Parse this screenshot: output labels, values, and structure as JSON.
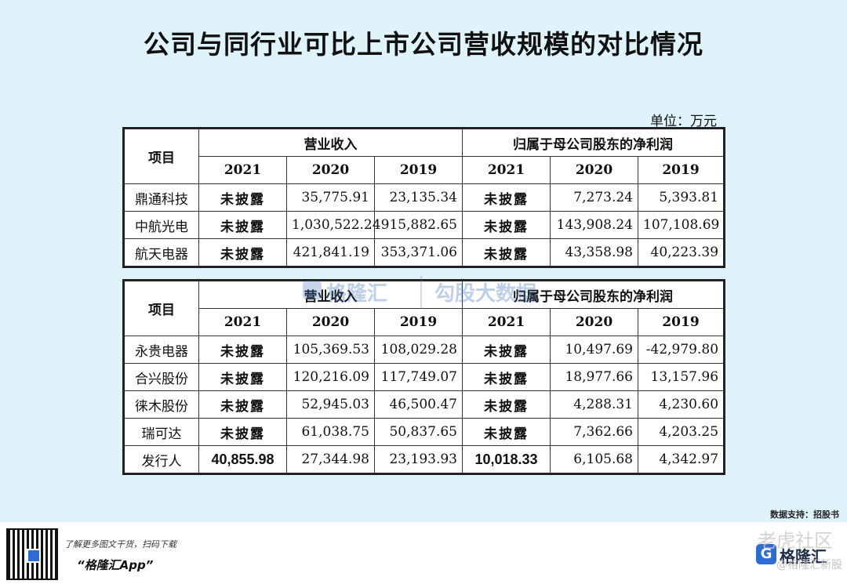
{
  "title": "公司与同行业可比上市公司营收规模的对比情况",
  "unit": "单位：万元",
  "headers": {
    "item": "项目",
    "revenue": "营业收入",
    "net_profit": "归属于母公司股东的净利润",
    "years": [
      "2021",
      "2020",
      "2019",
      "2021",
      "2020",
      "2019"
    ]
  },
  "table1": [
    {
      "name": "鼎通科技",
      "r2021": "未披露",
      "r2020": "35,775.91",
      "r2019": "23,135.34",
      "p2021": "未披露",
      "p2020": "7,273.24",
      "p2019": "5,393.81"
    },
    {
      "name": "中航光电",
      "r2021": "未披露",
      "r2020": "1,030,522.24",
      "r2019": "915,882.65",
      "p2021": "未披露",
      "p2020": "143,908.24",
      "p2019": "107,108.69"
    },
    {
      "name": "航天电器",
      "r2021": "未披露",
      "r2020": "421,841.19",
      "r2019": "353,371.06",
      "p2021": "未披露",
      "p2020": "43,358.98",
      "p2019": "40,223.39"
    }
  ],
  "table2": [
    {
      "name": "永贵电器",
      "r2021": "未披露",
      "r2020": "105,369.53",
      "r2019": "108,029.28",
      "p2021": "未披露",
      "p2020": "10,497.69",
      "p2019": "-42,979.80"
    },
    {
      "name": "合兴股份",
      "r2021": "未披露",
      "r2020": "120,216.09",
      "r2019": "117,749.07",
      "p2021": "未披露",
      "p2020": "18,977.66",
      "p2019": "13,157.96"
    },
    {
      "name": "徕木股份",
      "r2021": "未披露",
      "r2020": "52,945.03",
      "r2019": "46,500.47",
      "p2021": "未披露",
      "p2020": "4,288.31",
      "p2019": "4,230.60"
    },
    {
      "name": "瑞可达",
      "r2021": "未披露",
      "r2020": "61,038.75",
      "r2019": "50,837.65",
      "p2021": "未披露",
      "p2020": "7,362.66",
      "p2019": "4,203.25"
    },
    {
      "name": "发行人",
      "r2021": "40,855.98",
      "r2020": "27,344.98",
      "r2019": "23,193.93",
      "p2021": "10,018.33",
      "p2020": "6,105.68",
      "p2019": "4,342.97"
    }
  ],
  "watermark": {
    "brand1": "格隆汇",
    "brand2": "勾股大数据"
  },
  "source": "数据支持：招股书",
  "footer": {
    "promo_line1": "了解更多图文干货，扫码下载",
    "promo_line2": "“格隆汇App”",
    "brand_logo": "G",
    "brand_name": "格隆汇",
    "watermark_site": "老虎社区",
    "watermark_author": "@格隆汇新股"
  }
}
